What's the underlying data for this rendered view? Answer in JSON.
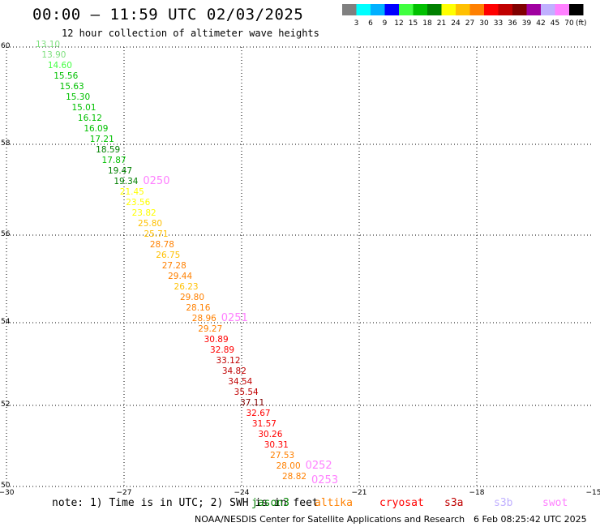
{
  "title": "00:00 – 11:59 UTC 02/03/2025",
  "subtitle": "12 hour collection of altimeter wave heights",
  "legend": {
    "unit": "(ft)",
    "bins": [
      {
        "label": "3",
        "color": "#808080"
      },
      {
        "label": "6",
        "color": "#00ffff"
      },
      {
        "label": "9",
        "color": "#00b0ff"
      },
      {
        "label": "12",
        "color": "#0000ff"
      },
      {
        "label": "15",
        "color": "#40ff40"
      },
      {
        "label": "18",
        "color": "#00c000"
      },
      {
        "label": "21",
        "color": "#008000"
      },
      {
        "label": "24",
        "color": "#ffff00"
      },
      {
        "label": "27",
        "color": "#ffc000"
      },
      {
        "label": "30",
        "color": "#ff8000"
      },
      {
        "label": "33",
        "color": "#ff0000"
      },
      {
        "label": "36",
        "color": "#c00000"
      },
      {
        "label": "39",
        "color": "#800000"
      },
      {
        "label": "42",
        "color": "#a000a0"
      },
      {
        "label": "45",
        "color": "#c0b0ff"
      },
      {
        "label": "70",
        "color": "#ff80ff"
      },
      {
        "label": "",
        "color": "#000000"
      }
    ]
  },
  "axes": {
    "lon_ticks": [
      "−30",
      "−27",
      "−24",
      "−21",
      "−18",
      "−15"
    ],
    "lat_ticks": [
      "60",
      "58",
      "56",
      "54",
      "52",
      "50"
    ]
  },
  "track": {
    "points": [
      {
        "v": "13.10",
        "c": "#80e080"
      },
      {
        "v": "13.90",
        "c": "#80e080"
      },
      {
        "v": "14.60",
        "c": "#40ff40"
      },
      {
        "v": "15.56",
        "c": "#00c000"
      },
      {
        "v": "15.63",
        "c": "#00c000"
      },
      {
        "v": "15.30",
        "c": "#00c000"
      },
      {
        "v": "15.01",
        "c": "#00c000"
      },
      {
        "v": "16.12",
        "c": "#00c000"
      },
      {
        "v": "16.09",
        "c": "#00c000"
      },
      {
        "v": "17.21",
        "c": "#00c000"
      },
      {
        "v": "18.59",
        "c": "#008000"
      },
      {
        "v": "17.87",
        "c": "#00c000"
      },
      {
        "v": "19.47",
        "c": "#008000"
      },
      {
        "v": "19.34",
        "c": "#008000"
      },
      {
        "v": "21.45",
        "c": "#ffff00"
      },
      {
        "v": "23.56",
        "c": "#ffff00"
      },
      {
        "v": "23.82",
        "c": "#ffff00"
      },
      {
        "v": "25.80",
        "c": "#ffc000"
      },
      {
        "v": "25.71",
        "c": "#ffc000"
      },
      {
        "v": "28.78",
        "c": "#ff8000"
      },
      {
        "v": "26.75",
        "c": "#ffc000"
      },
      {
        "v": "27.28",
        "c": "#ff8000"
      },
      {
        "v": "29.44",
        "c": "#ff8000"
      },
      {
        "v": "26.23",
        "c": "#ffc000"
      },
      {
        "v": "29.80",
        "c": "#ff8000"
      },
      {
        "v": "28.16",
        "c": "#ff8000"
      },
      {
        "v": "28.96",
        "c": "#ff8000"
      },
      {
        "v": "29.27",
        "c": "#ff8000"
      },
      {
        "v": "30.89",
        "c": "#ff0000"
      },
      {
        "v": "32.89",
        "c": "#ff0000"
      },
      {
        "v": "33.12",
        "c": "#c00000"
      },
      {
        "v": "34.82",
        "c": "#c00000"
      },
      {
        "v": "34.54",
        "c": "#c00000"
      },
      {
        "v": "35.54",
        "c": "#c00000"
      },
      {
        "v": "37.11",
        "c": "#800000"
      },
      {
        "v": "32.67",
        "c": "#ff0000"
      },
      {
        "v": "31.57",
        "c": "#ff0000"
      },
      {
        "v": "30.26",
        "c": "#ff0000"
      },
      {
        "v": "30.31",
        "c": "#ff0000"
      },
      {
        "v": "27.53",
        "c": "#ff8000"
      },
      {
        "v": "28.00",
        "c": "#ff8000"
      },
      {
        "v": "28.82",
        "c": "#ff8000"
      }
    ],
    "time_labels": [
      {
        "t": "0250",
        "c": "#ff80ff",
        "at": 13
      },
      {
        "t": "0251",
        "c": "#ff80ff",
        "at": 26
      },
      {
        "t": "0252",
        "c": "#ff80ff",
        "at": 40
      },
      {
        "t": "0253",
        "c": "#ff80ff",
        "at": 41
      }
    ]
  },
  "footer": {
    "note": "note: 1) Time is in UTC; 2) SWH is in feet",
    "satellites": [
      {
        "name": "jason3",
        "color": "#008000"
      },
      {
        "name": "altika",
        "color": "#ff8000"
      },
      {
        "name": "cryosat",
        "color": "#ff0000"
      },
      {
        "name": "s3a",
        "color": "#c00000"
      },
      {
        "name": "s3b",
        "color": "#c0b0ff"
      },
      {
        "name": "swot",
        "color": "#ff80ff"
      }
    ],
    "credit": "NOAA/NESDIS Center for Satellite Applications and Research",
    "timestamp": "6 Feb 08:25:42 UTC 2025"
  }
}
